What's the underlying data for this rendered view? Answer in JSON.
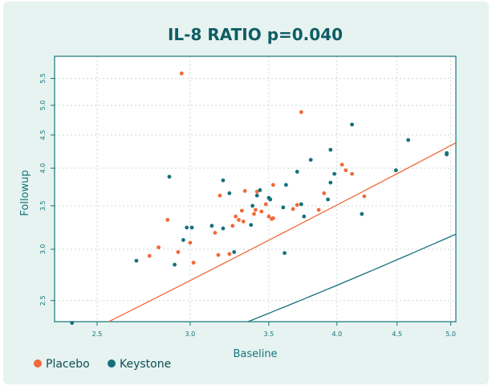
{
  "colors": {
    "background": "#e6f3f0",
    "plot_bg": "#ffffff",
    "axis": "#14737a",
    "title": "#0f5d63",
    "grid": "#c9d9d9",
    "placebo": "#f0693a",
    "keystone": "#16707a"
  },
  "chart_data": {
    "type": "scatter",
    "title": "IL-8 RATIO p=0.040",
    "xlabel": "Baseline",
    "ylabel": "Followup",
    "x_scale": "log",
    "y_scale": "log",
    "xlim": [
      2.3,
      5.05
    ],
    "ylim": [
      2.32,
      5.95
    ],
    "x_ticks": [
      2.5,
      3.0,
      3.5,
      4.0,
      4.5,
      5.0
    ],
    "x_tick_labels": [
      "2.5",
      "3.0",
      "3.5",
      "4.0",
      "4.5",
      "5.0"
    ],
    "y_ticks": [
      2.5,
      3.0,
      3.5,
      4.0,
      4.5,
      5.0,
      5.5
    ],
    "y_tick_labels": [
      "2.5",
      "3.0",
      "3.5",
      "4.0",
      "4.5",
      "5.0",
      "5.5"
    ],
    "grid": true,
    "legend_position": "bottom-left",
    "series": [
      {
        "name": "Placebo",
        "color": "#f0693a",
        "points": [
          [
            2.77,
            2.93
          ],
          [
            2.82,
            3.02
          ],
          [
            2.87,
            3.33
          ],
          [
            2.93,
            2.97
          ],
          [
            2.95,
            5.6
          ],
          [
            3.0,
            3.07
          ],
          [
            3.02,
            2.86
          ],
          [
            3.15,
            3.18
          ],
          [
            3.17,
            2.94
          ],
          [
            3.18,
            3.63
          ],
          [
            3.24,
            2.95
          ],
          [
            3.26,
            3.26
          ],
          [
            3.28,
            3.37
          ],
          [
            3.3,
            3.33
          ],
          [
            3.32,
            3.44
          ],
          [
            3.33,
            3.31
          ],
          [
            3.34,
            3.69
          ],
          [
            3.4,
            3.4
          ],
          [
            3.41,
            3.45
          ],
          [
            3.42,
            3.68
          ],
          [
            3.45,
            3.43
          ],
          [
            3.48,
            3.52
          ],
          [
            3.5,
            3.37
          ],
          [
            3.52,
            3.34
          ],
          [
            3.53,
            3.77
          ],
          [
            3.53,
            3.35
          ],
          [
            3.67,
            3.46
          ],
          [
            3.7,
            3.51
          ],
          [
            3.73,
            4.88
          ],
          [
            3.86,
            3.45
          ],
          [
            3.9,
            3.66
          ],
          [
            4.04,
            4.05
          ],
          [
            4.07,
            3.97
          ],
          [
            4.12,
            3.92
          ],
          [
            4.22,
            3.62
          ]
        ]
      },
      {
        "name": "Keystone",
        "color": "#16707a",
        "points": [
          [
            2.38,
            2.31
          ],
          [
            2.7,
            2.88
          ],
          [
            2.88,
            3.88
          ],
          [
            2.91,
            2.84
          ],
          [
            2.96,
            3.1
          ],
          [
            2.98,
            3.24
          ],
          [
            3.01,
            3.24
          ],
          [
            3.13,
            3.26
          ],
          [
            3.2,
            3.83
          ],
          [
            3.2,
            3.23
          ],
          [
            3.24,
            3.66
          ],
          [
            3.27,
            2.97
          ],
          [
            3.38,
            3.27
          ],
          [
            3.39,
            3.5
          ],
          [
            3.42,
            3.63
          ],
          [
            3.44,
            3.7
          ],
          [
            3.5,
            3.6
          ],
          [
            3.51,
            3.58
          ],
          [
            3.6,
            3.48
          ],
          [
            3.61,
            2.96
          ],
          [
            3.62,
            3.77
          ],
          [
            3.7,
            3.95
          ],
          [
            3.73,
            3.52
          ],
          [
            3.75,
            3.37
          ],
          [
            3.8,
            4.12
          ],
          [
            3.93,
            3.58
          ],
          [
            3.95,
            3.8
          ],
          [
            3.95,
            4.27
          ],
          [
            3.98,
            3.92
          ],
          [
            4.12,
            4.67
          ],
          [
            4.2,
            3.4
          ],
          [
            4.49,
            3.97
          ],
          [
            4.6,
            4.42
          ],
          [
            4.96,
            4.22
          ],
          [
            4.96,
            4.2
          ]
        ]
      }
    ],
    "fit_lines": [
      {
        "name": "Placebo",
        "color": "#f0693a",
        "intercept": 0.21,
        "slope": 0.825
      },
      {
        "name": "Keystone",
        "color": "#16707a",
        "intercept": 0.64,
        "slope": 0.5
      }
    ]
  }
}
